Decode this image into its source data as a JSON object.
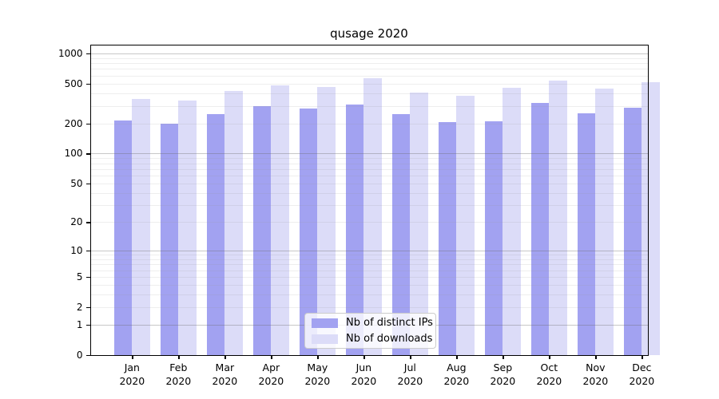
{
  "chart_data": {
    "type": "bar",
    "title": "qusage 2020",
    "categories": [
      "Jan",
      "Feb",
      "Mar",
      "Apr",
      "May",
      "Jun",
      "Jul",
      "Aug",
      "Sep",
      "Oct",
      "Nov",
      "Dec"
    ],
    "category_year": "2020",
    "series": [
      {
        "name": "Nb of distinct IPs",
        "color": "#a2a2f1",
        "values": [
          215,
          200,
          250,
          300,
          285,
          310,
          250,
          205,
          212,
          322,
          252,
          290
        ]
      },
      {
        "name": "Nb of downloads",
        "color": "#dcdcf8",
        "values": [
          350,
          340,
          425,
          480,
          460,
          565,
          405,
          378,
          452,
          540,
          445,
          515
        ]
      }
    ],
    "yscale": "log1p",
    "ytick_values": [
      0,
      1,
      2,
      5,
      10,
      20,
      50,
      100,
      200,
      500,
      1000
    ],
    "ytick_labels": [
      "0",
      "1",
      "2",
      "5",
      "10",
      "20",
      "50",
      "100",
      "200",
      "500",
      "1000"
    ],
    "ylim_top": 1000,
    "grid": "both",
    "grid_major_values": [
      1,
      10,
      100,
      1000
    ],
    "grid_major_color": "rgba(110,110,110,0.38)",
    "grid_minor_color": "rgba(150,150,150,0.16)",
    "legend_position": "lower center",
    "xlabel": "",
    "ylabel": ""
  }
}
